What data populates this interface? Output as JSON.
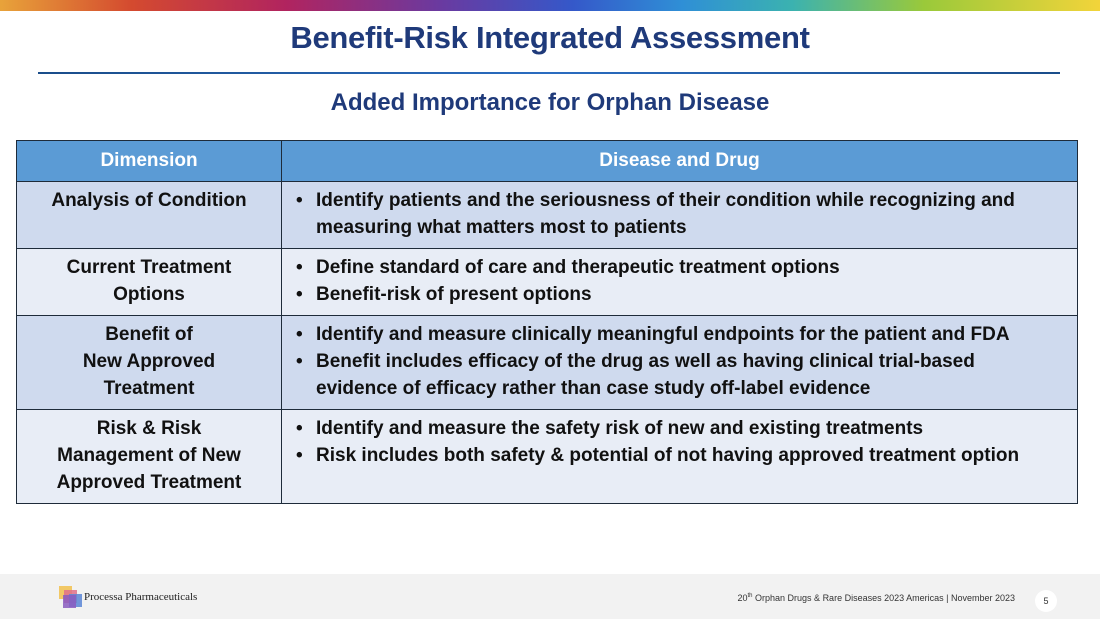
{
  "slide": {
    "title": "Benefit-Risk Integrated Assessment",
    "subtitle": "Added Importance for Orphan Disease"
  },
  "table": {
    "headers": [
      "Dimension",
      "Disease and Drug"
    ],
    "rows": [
      {
        "dimension": [
          "Analysis of Condition"
        ],
        "bullets": [
          "Identify patients and the seriousness of their condition while recognizing and measuring what matters most to patients"
        ]
      },
      {
        "dimension": [
          "Current Treatment",
          "Options"
        ],
        "bullets": [
          "Define standard of care and therapeutic treatment options",
          "Benefit-risk of present options"
        ]
      },
      {
        "dimension": [
          "Benefit of",
          "New Approved",
          "Treatment"
        ],
        "bullets": [
          "Identify and measure clinically meaningful endpoints for the patient and FDA",
          "Benefit includes efficacy of the drug as well as having clinical trial-based evidence of efficacy rather than case study off-label evidence"
        ]
      },
      {
        "dimension": [
          "Risk & Risk",
          "Management of New",
          "Approved Treatment"
        ],
        "bullets": [
          "Identify and measure the safety risk of new and existing treatments",
          "Risk includes both safety & potential of not having approved treatment option"
        ]
      }
    ]
  },
  "footer": {
    "company": "Processa Pharmaceuticals",
    "event_ordinal": "20",
    "event_suffix": "th",
    "event_text": " Orphan Drugs & Rare Diseases 2023 Americas | November 2023",
    "page_number": "5"
  },
  "colors": {
    "title": "#1f3a7a",
    "header_bg": "#5b9bd5",
    "row_odd": "#cfdaee",
    "row_even": "#e8edf6"
  }
}
